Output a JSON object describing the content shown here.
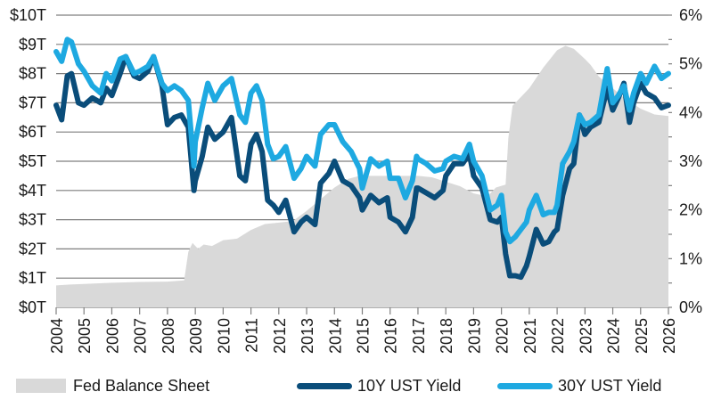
{
  "chart_data": {
    "type": "line",
    "title": "",
    "xlabel": "",
    "ylabel_left": "",
    "ylabel_right": "",
    "x_range": [
      2004,
      2026
    ],
    "x_ticks": [
      "2004",
      "2005",
      "2006",
      "2007",
      "2008",
      "2009",
      "2010",
      "2011",
      "2012",
      "2013",
      "2014",
      "2015",
      "2016",
      "2017",
      "2018",
      "2019",
      "2020",
      "2021",
      "2022",
      "2023",
      "2024",
      "2025",
      "2026"
    ],
    "y_left": {
      "range": [
        0,
        10
      ],
      "unit": "T",
      "ticks": [
        "$0T",
        "$1T",
        "$2T",
        "$3T",
        "$4T",
        "$5T",
        "$6T",
        "$7T",
        "$8T",
        "$9T",
        "$10T"
      ],
      "tick_values": [
        0,
        1,
        2,
        3,
        4,
        5,
        6,
        7,
        8,
        9,
        10
      ]
    },
    "y_right": {
      "range": [
        0,
        6
      ],
      "unit": "%",
      "ticks": [
        "0%",
        "1%",
        "2%",
        "3%",
        "4%",
        "5%",
        "6%"
      ],
      "tick_values": [
        0,
        1,
        2,
        3,
        4,
        5,
        6
      ]
    },
    "grid": true,
    "legend_position": "bottom",
    "series": [
      {
        "name": "Fed Balance Sheet",
        "type": "area",
        "axis": "left",
        "color": "#d9d9d9",
        "x": [
          2004,
          2004.5,
          2005,
          2006,
          2007,
          2008,
          2008.6,
          2008.75,
          2008.9,
          2009.1,
          2009.3,
          2009.6,
          2010,
          2010.5,
          2011,
          2011.5,
          2012,
          2012.5,
          2013,
          2013.5,
          2014,
          2014.5,
          2014.9,
          2015.5,
          2016,
          2017,
          2017.5,
          2018,
          2018.5,
          2019,
          2019.5,
          2019.8,
          2020.15,
          2020.25,
          2020.4,
          2020.6,
          2021,
          2021.5,
          2022,
          2022.3,
          2022.6,
          2023,
          2023.2,
          2023.5,
          2024,
          2024.5,
          2025,
          2025.5,
          2026
        ],
        "values": [
          0.75,
          0.78,
          0.8,
          0.84,
          0.87,
          0.88,
          0.92,
          1.9,
          2.2,
          2.0,
          2.15,
          2.1,
          2.3,
          2.35,
          2.65,
          2.85,
          2.9,
          2.95,
          3.3,
          3.7,
          4.1,
          4.4,
          4.5,
          4.5,
          4.5,
          4.5,
          4.45,
          4.3,
          4.15,
          3.9,
          3.8,
          4.1,
          4.2,
          5.8,
          6.9,
          7.1,
          7.5,
          8.2,
          8.8,
          8.95,
          8.85,
          8.5,
          8.3,
          7.9,
          7.5,
          7.1,
          6.8,
          6.6,
          6.55
        ]
      },
      {
        "name": "10Y UST Yield",
        "type": "line",
        "axis": "right",
        "color": "#0a4d7a",
        "x": [
          2004,
          2004.2,
          2004.4,
          2004.55,
          2004.8,
          2005,
          2005.3,
          2005.6,
          2005.8,
          2006,
          2006.3,
          2006.5,
          2006.8,
          2007,
          2007.3,
          2007.5,
          2007.8,
          2008,
          2008.25,
          2008.5,
          2008.75,
          2008.95,
          2009,
          2009.25,
          2009.45,
          2009.7,
          2010,
          2010.3,
          2010.6,
          2010.8,
          2011,
          2011.2,
          2011.4,
          2011.6,
          2011.8,
          2012,
          2012.25,
          2012.55,
          2012.8,
          2013,
          2013.3,
          2013.5,
          2013.8,
          2014,
          2014.3,
          2014.6,
          2014.9,
          2015,
          2015.3,
          2015.6,
          2015.9,
          2016,
          2016.3,
          2016.55,
          2016.8,
          2016.95,
          2017,
          2017.3,
          2017.6,
          2017.9,
          2018,
          2018.3,
          2018.6,
          2018.85,
          2019,
          2019.3,
          2019.6,
          2019.85,
          2020,
          2020.15,
          2020.3,
          2020.5,
          2020.7,
          2020.9,
          2021,
          2021.25,
          2021.5,
          2021.7,
          2021.9,
          2022,
          2022.2,
          2022.45,
          2022.6,
          2022.8,
          2023,
          2023.2,
          2023.5,
          2023.8,
          2024,
          2024.2,
          2024.4,
          2024.6,
          2024.75,
          2025,
          2025.2,
          2025.5,
          2025.75,
          2026
        ],
        "values": [
          4.15,
          3.85,
          4.75,
          4.8,
          4.2,
          4.15,
          4.3,
          4.2,
          4.5,
          4.35,
          4.8,
          5.15,
          4.75,
          4.7,
          4.85,
          5.15,
          4.55,
          3.75,
          3.9,
          3.95,
          3.7,
          2.4,
          2.6,
          3.1,
          3.7,
          3.45,
          3.6,
          3.9,
          2.7,
          2.6,
          3.35,
          3.55,
          3.2,
          2.2,
          2.1,
          1.95,
          2.2,
          1.55,
          1.75,
          1.85,
          1.7,
          2.55,
          2.75,
          3.0,
          2.6,
          2.5,
          2.25,
          2.0,
          2.3,
          2.15,
          2.25,
          1.85,
          1.75,
          1.55,
          1.85,
          2.45,
          2.45,
          2.35,
          2.25,
          2.4,
          2.7,
          2.95,
          2.95,
          3.15,
          2.7,
          2.45,
          1.8,
          1.75,
          1.85,
          1.1,
          0.65,
          0.65,
          0.62,
          0.85,
          1.05,
          1.6,
          1.3,
          1.35,
          1.55,
          1.6,
          2.3,
          2.85,
          2.95,
          3.95,
          3.55,
          3.7,
          3.8,
          4.5,
          4.05,
          4.3,
          4.6,
          3.8,
          4.2,
          4.6,
          4.4,
          4.3,
          4.1,
          4.15
        ]
      },
      {
        "name": "30Y UST Yield",
        "type": "line",
        "axis": "right",
        "color": "#1ea9e1",
        "x": [
          2004,
          2004.2,
          2004.4,
          2004.55,
          2004.8,
          2005,
          2005.3,
          2005.6,
          2005.8,
          2006,
          2006.3,
          2006.5,
          2006.8,
          2007,
          2007.3,
          2007.5,
          2007.8,
          2008,
          2008.25,
          2008.5,
          2008.75,
          2008.95,
          2009,
          2009.25,
          2009.45,
          2009.7,
          2010,
          2010.3,
          2010.6,
          2010.8,
          2011,
          2011.2,
          2011.4,
          2011.6,
          2011.8,
          2012,
          2012.25,
          2012.55,
          2012.8,
          2013,
          2013.3,
          2013.5,
          2013.8,
          2014,
          2014.3,
          2014.6,
          2014.9,
          2015,
          2015.3,
          2015.6,
          2015.9,
          2016,
          2016.3,
          2016.55,
          2016.8,
          2016.95,
          2017,
          2017.3,
          2017.6,
          2017.9,
          2018,
          2018.3,
          2018.6,
          2018.85,
          2019,
          2019.3,
          2019.6,
          2019.85,
          2020,
          2020.15,
          2020.3,
          2020.5,
          2020.7,
          2020.9,
          2021,
          2021.25,
          2021.5,
          2021.7,
          2021.9,
          2022,
          2022.2,
          2022.45,
          2022.6,
          2022.8,
          2023,
          2023.2,
          2023.5,
          2023.8,
          2024,
          2024.2,
          2024.4,
          2024.6,
          2024.75,
          2025,
          2025.2,
          2025.5,
          2025.75,
          2026
        ],
        "values": [
          5.25,
          5.05,
          5.5,
          5.45,
          5.0,
          4.85,
          4.55,
          4.4,
          4.8,
          4.65,
          5.1,
          5.15,
          4.8,
          4.85,
          4.95,
          5.15,
          4.6,
          4.45,
          4.55,
          4.45,
          4.25,
          2.9,
          3.4,
          4.1,
          4.6,
          4.25,
          4.55,
          4.7,
          3.95,
          3.8,
          4.4,
          4.55,
          4.25,
          3.35,
          3.05,
          3.1,
          3.3,
          2.65,
          2.85,
          3.1,
          2.9,
          3.55,
          3.75,
          3.75,
          3.4,
          3.2,
          2.85,
          2.45,
          3.05,
          2.9,
          3.0,
          2.65,
          2.65,
          2.25,
          2.6,
          3.1,
          3.05,
          2.95,
          2.8,
          2.85,
          3.0,
          3.1,
          3.05,
          3.35,
          3.0,
          2.7,
          2.0,
          2.1,
          2.3,
          1.55,
          1.35,
          1.45,
          1.6,
          1.75,
          2.0,
          2.3,
          1.9,
          1.95,
          1.95,
          2.1,
          2.95,
          3.2,
          3.4,
          3.95,
          3.75,
          3.8,
          3.95,
          4.9,
          4.2,
          4.35,
          4.55,
          4.05,
          4.4,
          4.8,
          4.6,
          4.95,
          4.7,
          4.8
        ]
      }
    ]
  },
  "legend": {
    "items": [
      {
        "label": "Fed Balance Sheet"
      },
      {
        "label": "10Y UST Yield"
      },
      {
        "label": "30Y UST Yield"
      }
    ]
  }
}
